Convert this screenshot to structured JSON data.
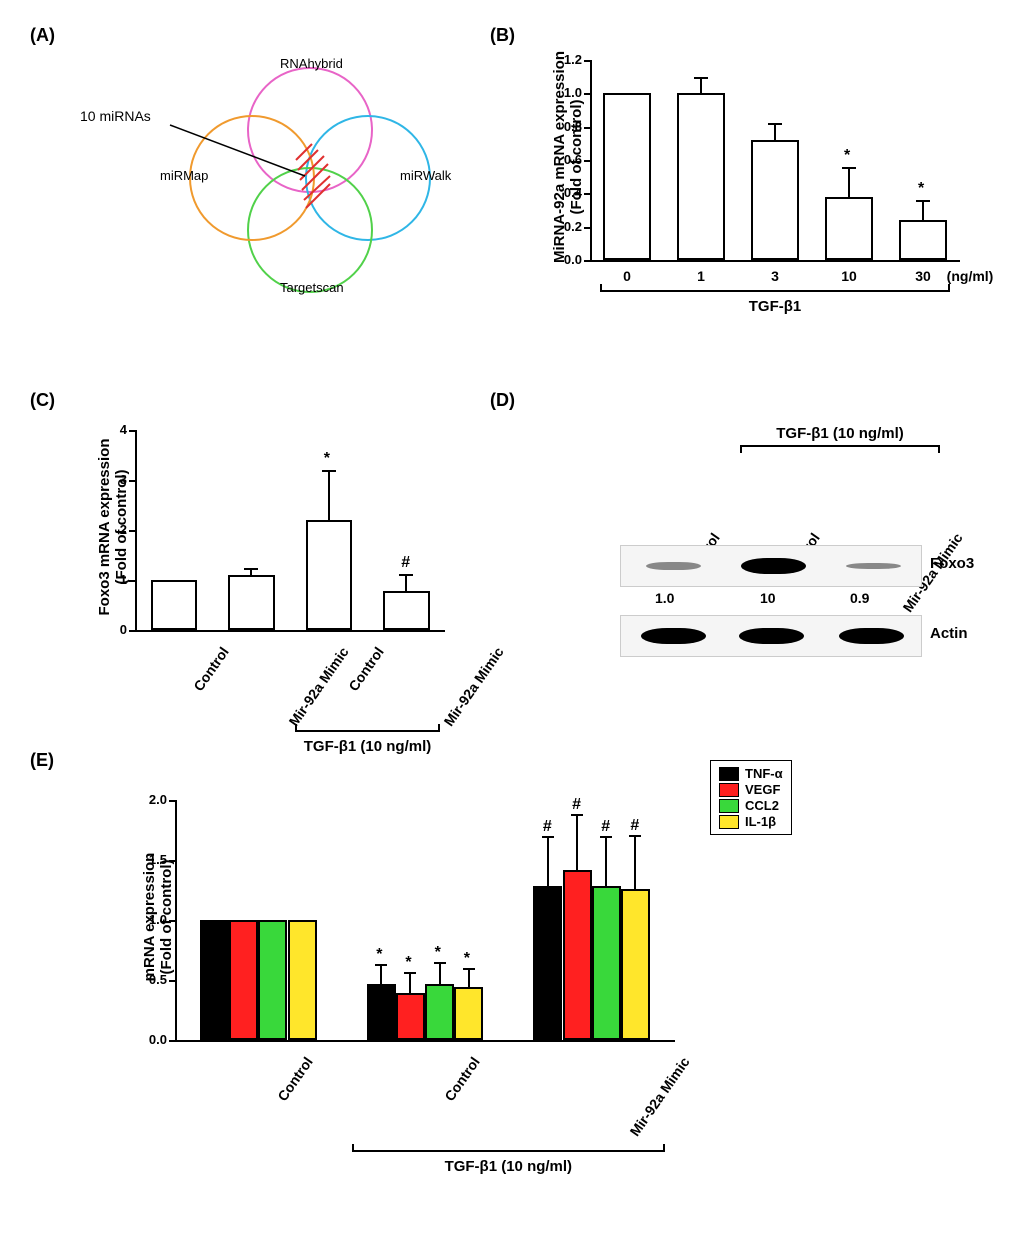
{
  "panels": {
    "A": "(A)",
    "B": "(B)",
    "C": "(C)",
    "D": "(D)",
    "E": "(E)"
  },
  "panelA": {
    "annotation": "10 miRNAs",
    "circles": {
      "RNAhybrid": {
        "label": "RNAhybrid",
        "color": "#e864c7"
      },
      "miRWalk": {
        "label": "miRWalk",
        "color": "#2fb6e6"
      },
      "Targetscan": {
        "label": "Targetscan",
        "color": "#51d14a"
      },
      "miRMap": {
        "label": "miRMap",
        "color": "#f09a2e"
      }
    },
    "hatch_color": "#e03030"
  },
  "panelB": {
    "y_title": "MiRNA-92a mRNA expression\n(Fold of control)",
    "ylim": [
      0.0,
      1.2
    ],
    "yticks": [
      0.0,
      0.2,
      0.4,
      0.6,
      0.8,
      1.0,
      1.2
    ],
    "bar_color": "#ffffff",
    "bar_border": "#000000",
    "categories": [
      "0",
      "1",
      "3",
      "10",
      "30"
    ],
    "unit": " (ng/ml)",
    "group_label": "TGF-β1",
    "bars": [
      {
        "value": 1.0,
        "err": 0.0,
        "sig": ""
      },
      {
        "value": 1.0,
        "err": 0.1,
        "sig": ""
      },
      {
        "value": 0.72,
        "err": 0.1,
        "sig": ""
      },
      {
        "value": 0.38,
        "err": 0.18,
        "sig": "*"
      },
      {
        "value": 0.24,
        "err": 0.12,
        "sig": "*"
      }
    ]
  },
  "panelC": {
    "y_title": "Foxo3 mRNA expression\n(Fold of control)",
    "ylim": [
      0,
      4
    ],
    "yticks": [
      0,
      1,
      2,
      3,
      4
    ],
    "categories": [
      "Control",
      "Mir-92a Mimic",
      "Control",
      "Mir-92a Mimic"
    ],
    "group_label": "TGF-β1 (10 ng/ml)",
    "bars": [
      {
        "value": 1.0,
        "err": 0.0,
        "sig": ""
      },
      {
        "value": 1.1,
        "err": 0.15,
        "sig": ""
      },
      {
        "value": 2.2,
        "err": 1.0,
        "sig": "*"
      },
      {
        "value": 0.78,
        "err": 0.35,
        "sig": "#"
      }
    ]
  },
  "panelD": {
    "group_label": "TGF-β1 (10 ng/ml)",
    "lanes": [
      "Control",
      "Control",
      "Mir-92a Mimic"
    ],
    "rows": [
      {
        "label": "Foxo3",
        "values": [
          "1.0",
          "10",
          "0.9"
        ],
        "intensities": [
          0.15,
          1.0,
          0.12
        ]
      },
      {
        "label": "Actin",
        "values": [],
        "intensities": [
          1.0,
          1.0,
          1.0
        ]
      }
    ]
  },
  "panelE": {
    "y_title": "mRNA expression\n(Fold of control)",
    "ylim": [
      0.0,
      2.0
    ],
    "yticks": [
      0.0,
      0.5,
      1.0,
      1.5,
      2.0
    ],
    "categories": [
      "Control",
      "Control",
      "Mir-92a Mimic"
    ],
    "group_label": "TGF-β1 (10 ng/ml)",
    "legend": [
      {
        "label": "TNF-α",
        "color": "#000000"
      },
      {
        "label": "VEGF",
        "color": "#ff2020"
      },
      {
        "label": "CCL2",
        "color": "#39d83b"
      },
      {
        "label": "IL-1β",
        "color": "#ffe62b"
      }
    ],
    "groups": [
      {
        "bars": [
          {
            "value": 1.0,
            "err": 0.0,
            "sig": ""
          },
          {
            "value": 1.0,
            "err": 0.0,
            "sig": ""
          },
          {
            "value": 1.0,
            "err": 0.0,
            "sig": ""
          },
          {
            "value": 1.0,
            "err": 0.0,
            "sig": ""
          }
        ]
      },
      {
        "bars": [
          {
            "value": 0.47,
            "err": 0.16,
            "sig": "*"
          },
          {
            "value": 0.39,
            "err": 0.18,
            "sig": "*"
          },
          {
            "value": 0.47,
            "err": 0.18,
            "sig": "*"
          },
          {
            "value": 0.44,
            "err": 0.16,
            "sig": "*"
          }
        ]
      },
      {
        "bars": [
          {
            "value": 1.28,
            "err": 0.42,
            "sig": "#"
          },
          {
            "value": 1.42,
            "err": 0.46,
            "sig": "#"
          },
          {
            "value": 1.28,
            "err": 0.42,
            "sig": "#"
          },
          {
            "value": 1.26,
            "err": 0.45,
            "sig": "#"
          }
        ]
      }
    ]
  }
}
